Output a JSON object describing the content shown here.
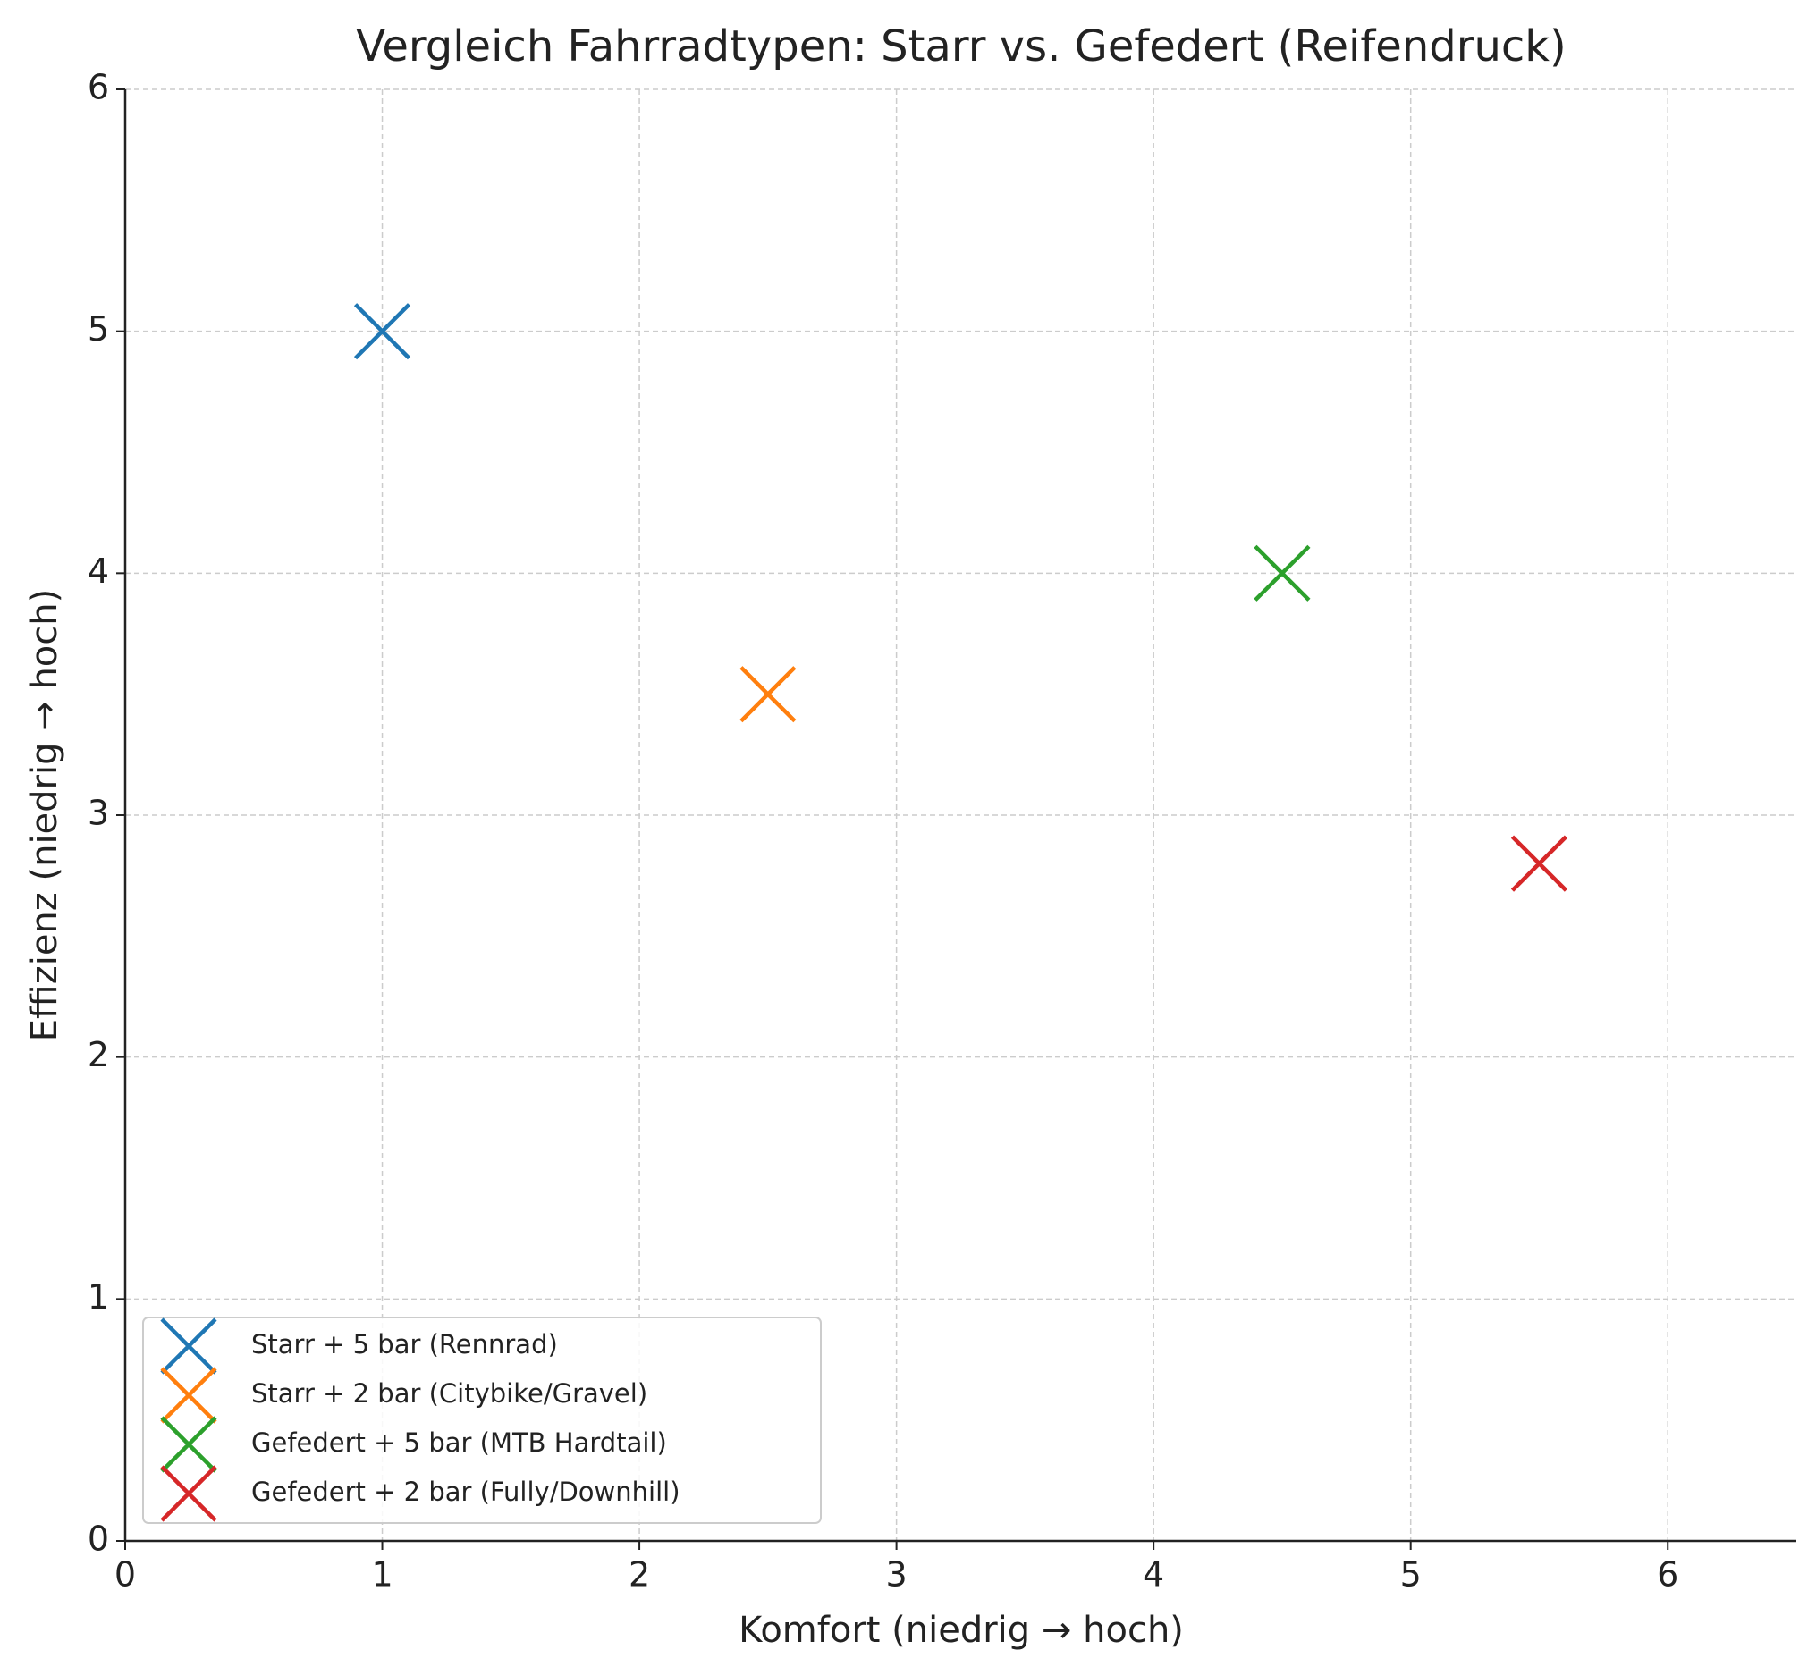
{
  "chart_data": {
    "type": "scatter",
    "title": "Vergleich Fahrradtypen: Starr vs. Gefedert (Reifendruck)",
    "x_label": "Komfort (niedrig → hoch)",
    "y_label": "Effizienz (niedrig → hoch)",
    "xlim": [
      0,
      6.5
    ],
    "ylim": [
      0,
      6
    ],
    "xticks": [
      0,
      1,
      2,
      3,
      4,
      5,
      6
    ],
    "yticks": [
      0,
      1,
      2,
      3,
      4,
      5,
      6
    ],
    "grid": true,
    "legend": "lower left",
    "marker": "x",
    "series": [
      {
        "name": "Starr + 5 bar (Rennrad)",
        "color": "#1f77b4",
        "x": [
          1
        ],
        "values": [
          5
        ]
      },
      {
        "name": "Starr + 2 bar (Citybike/Gravel)",
        "color": "#ff7f0e",
        "x": [
          2.5
        ],
        "values": [
          3.5
        ]
      },
      {
        "name": "Gefedert + 5 bar (MTB Hardtail)",
        "color": "#2ca02c",
        "x": [
          4.5
        ],
        "values": [
          4
        ]
      },
      {
        "name": "Gefedert + 2 bar (Fully/Downhill)",
        "color": "#d62728",
        "x": [
          5.5
        ],
        "values": [
          2.8
        ]
      }
    ]
  }
}
